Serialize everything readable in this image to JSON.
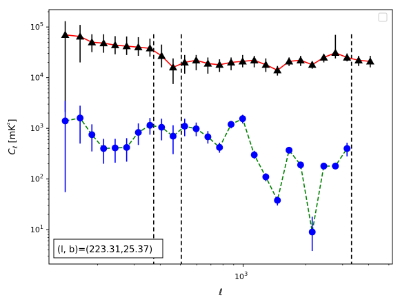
{
  "chart_data": {
    "type": "scatter",
    "xlabel": "ℓ",
    "ylabel": "C_ℓ [mK²]",
    "x_scale": "log",
    "y_scale": "log",
    "xlim": [
      117,
      5200
    ],
    "ylim": [
      2.1,
      220000
    ],
    "x_ticks": [
      {
        "value": 1000,
        "base": "10",
        "exp": "3"
      }
    ],
    "y_ticks": [
      {
        "value": 10,
        "base": "10",
        "exp": "1"
      },
      {
        "value": 100,
        "base": "10",
        "exp": "2"
      },
      {
        "value": 1000,
        "base": "10",
        "exp": "3"
      },
      {
        "value": 10000,
        "base": "10",
        "exp": "4"
      },
      {
        "value": 100000,
        "base": "10",
        "exp": "5"
      }
    ],
    "annotation": "(l, b)=(223.31,25.37)",
    "legend": "top-right, empty",
    "vlines": {
      "color": "#000000",
      "style": "dashed",
      "x": [
        372,
        505,
        3310
      ]
    },
    "series": [
      {
        "marker": "triangle",
        "color": "#000000",
        "line_color": "#ff0000",
        "line_style": "solid",
        "x": [
          140,
          165,
          188,
          214,
          243,
          276,
          314,
          357,
          406,
          461,
          524,
          595,
          677,
          770,
          875,
          994,
          1130,
          1284,
          1460,
          1660,
          1886,
          2144,
          2437,
          2770,
          3150,
          3580,
          4070
        ],
        "y": [
          70000,
          65000,
          50000,
          48000,
          44000,
          42000,
          40000,
          38000,
          27000,
          16000,
          20000,
          22000,
          19000,
          18000,
          20000,
          21000,
          22000,
          18000,
          14000,
          21000,
          22000,
          18000,
          25000,
          31000,
          25000,
          22000,
          21000
        ],
        "err_low": [
          2100,
          20000,
          32000,
          31000,
          29000,
          28000,
          27000,
          26000,
          16000,
          7500,
          12000,
          14000,
          12000,
          13000,
          14000,
          16000,
          16000,
          13000,
          11000,
          17000,
          17000,
          15000,
          20000,
          24000,
          21000,
          17000,
          16000
        ],
        "err_high": [
          130000,
          110000,
          72000,
          72000,
          66000,
          65000,
          63000,
          59000,
          45000,
          24000,
          28000,
          28000,
          25000,
          23000,
          25000,
          28000,
          27000,
          24000,
          17000,
          25000,
          27000,
          21000,
          29000,
          70000,
          30000,
          27000,
          27000
        ]
      },
      {
        "marker": "circle",
        "color": "#0000ff",
        "line_color": "#008000",
        "line_style": "dashed",
        "x": [
          140,
          165,
          188,
          214,
          243,
          276,
          314,
          357,
          406,
          461,
          524,
          595,
          677,
          770,
          875,
          994,
          1130,
          1284,
          1460,
          1660,
          1886,
          2144,
          2437,
          2770,
          3150,
          3580,
          4070
        ],
        "y": [
          1400,
          1600,
          750,
          400,
          410,
          420,
          830,
          1150,
          1050,
          700,
          1100,
          980,
          680,
          420,
          1200,
          1550,
          300,
          110,
          38,
          370,
          190,
          9,
          180,
          180,
          400,
          0,
          0
        ],
        "err_low": [
          55,
          500,
          350,
          200,
          210,
          220,
          470,
          750,
          580,
          310,
          700,
          700,
          500,
          330,
          1000,
          1250,
          250,
          90,
          30,
          330,
          160,
          3.8,
          0,
          0,
          280,
          0,
          0
        ],
        "err_high": [
          3500,
          2800,
          1200,
          620,
          620,
          640,
          1250,
          1600,
          1550,
          1150,
          1550,
          1300,
          880,
          520,
          1400,
          1850,
          360,
          130,
          45,
          420,
          220,
          18,
          0,
          0,
          520,
          0,
          0
        ]
      }
    ]
  }
}
